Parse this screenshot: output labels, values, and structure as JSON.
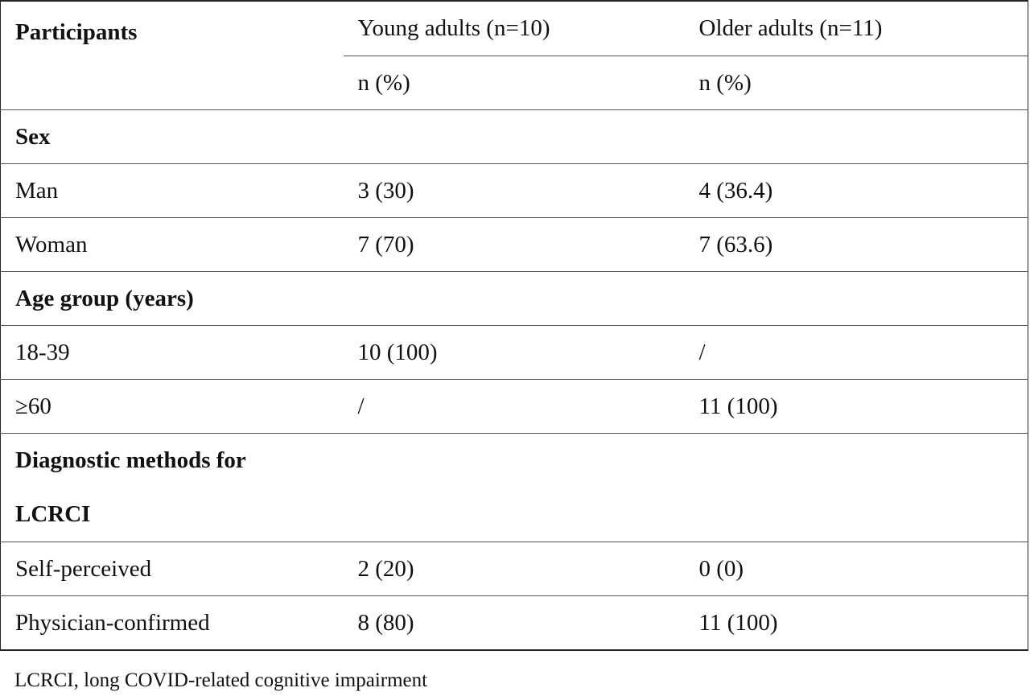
{
  "table": {
    "header": {
      "participants": "Participants",
      "young_adults": "Young adults (n=10)",
      "older_adults": "Older adults (n=11)",
      "young_unit": "n (%)",
      "older_unit": "n (%)"
    },
    "sections": {
      "sex": "Sex",
      "age_group": "Age group (years)",
      "diagnostic": "Diagnostic methods for LCRCI"
    },
    "rows": {
      "man": {
        "label": "Man",
        "young": "3 (30)",
        "older": "4 (36.4)"
      },
      "woman": {
        "label": "Woman",
        "young": "7 (70)",
        "older": "7 (63.6)"
      },
      "age_18_39": {
        "label": "18-39",
        "young": "10 (100)",
        "older": "/"
      },
      "age_60": {
        "label": "≥60",
        "young": "/",
        "older": "11 (100)"
      },
      "self_perceived": {
        "label": "Self-perceived",
        "young": "2 (20)",
        "older": "0 (0)"
      },
      "physician_confirmed": {
        "label": "Physician-confirmed",
        "young": "8 (80)",
        "older": "11 (100)"
      }
    }
  },
  "footnote": "LCRCI, long COVID-related cognitive impairment"
}
